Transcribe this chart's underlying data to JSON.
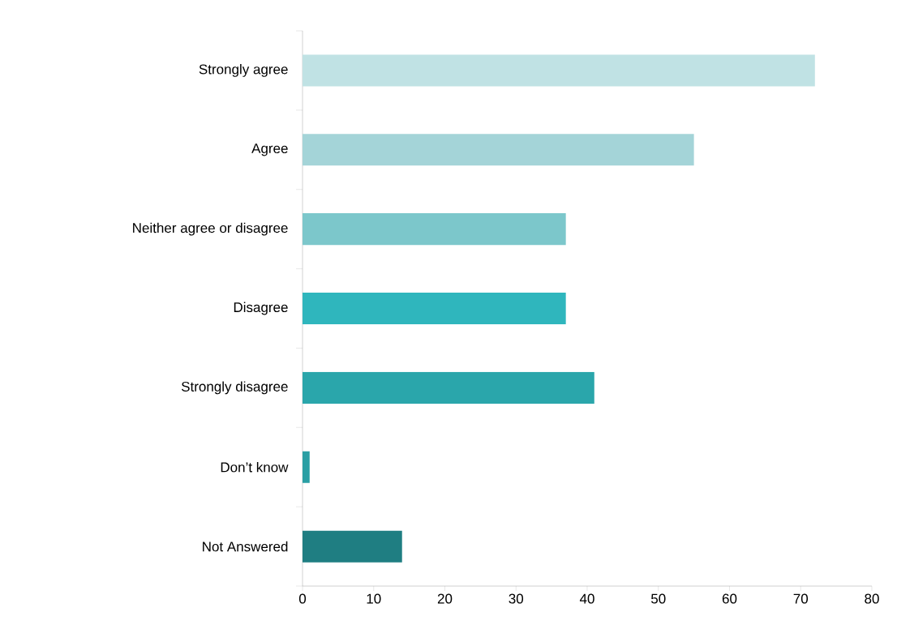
{
  "chart_data": {
    "type": "bar",
    "orientation": "horizontal",
    "categories": [
      "Strongly agree",
      "Agree",
      "Neither agree or disagree",
      "Disagree",
      "Strongly disagree",
      "Don’t know",
      "Not Answered"
    ],
    "values": [
      72,
      55,
      37,
      37,
      41,
      1,
      14
    ],
    "colors": [
      "#c0e2e4",
      "#a4d4d8",
      "#7cc7cb",
      "#2fb6bd",
      "#2aa6ab",
      "#2a9fa4",
      "#1f7e82"
    ],
    "xlim": [
      0,
      80
    ],
    "xticks": [
      0,
      10,
      20,
      30,
      40,
      50,
      60,
      70,
      80
    ]
  }
}
